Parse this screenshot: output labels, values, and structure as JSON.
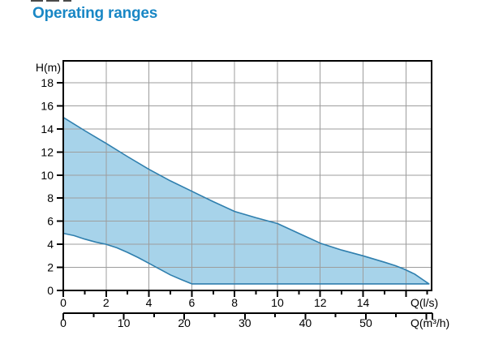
{
  "title": "Operating ranges",
  "title_color": "#1987c5",
  "chart_data": {
    "type": "area",
    "title": "Operating ranges",
    "grid": {
      "color": "#9d9d9d",
      "x_step": 2,
      "y_step": 2,
      "grid_on": true
    },
    "frame_color": "#000000",
    "y_axis": {
      "label": "H(m)",
      "range": [
        0,
        19.9
      ],
      "ticks": [
        0,
        2,
        4,
        6,
        8,
        10,
        12,
        14,
        16,
        18
      ]
    },
    "x_axis_primary": {
      "label": "Q(l/s)",
      "range": [
        0,
        17.2
      ],
      "major_ticks": [
        0,
        2,
        4,
        6,
        8,
        10,
        12,
        14,
        16
      ],
      "minor_ticks": [
        1,
        3,
        5,
        7,
        9,
        11,
        13,
        15,
        17
      ],
      "labeled_ticks": [
        0,
        2,
        4,
        6,
        8,
        10,
        12,
        14
      ]
    },
    "x_axis_secondary": {
      "label": "Q(m³/h)",
      "range": [
        0,
        61
      ],
      "major_ticks": [
        0,
        10,
        20,
        30,
        40,
        50,
        60
      ],
      "minor_ticks": [
        5,
        15,
        25,
        35,
        45,
        55
      ],
      "labeled_ticks": [
        0,
        10,
        20,
        30,
        40,
        50
      ],
      "end_tick_value": 61
    },
    "band": {
      "name": "operating-range-envelope",
      "fill": "#a7d3ea",
      "stroke": "#2f7fae",
      "upper_boundary": [
        [
          0,
          15.0
        ],
        [
          1,
          13.85
        ],
        [
          2,
          12.75
        ],
        [
          3,
          11.6
        ],
        [
          4,
          10.5
        ],
        [
          5,
          9.5
        ],
        [
          6,
          8.6
        ],
        [
          7,
          7.7
        ],
        [
          8,
          6.85
        ],
        [
          9,
          6.3
        ],
        [
          10,
          5.8
        ],
        [
          11,
          4.95
        ],
        [
          12,
          4.1
        ],
        [
          13,
          3.5
        ],
        [
          14,
          3.0
        ],
        [
          15,
          2.45
        ],
        [
          15.5,
          2.15
        ],
        [
          15.9,
          1.86
        ],
        [
          16.4,
          1.43
        ],
        [
          16.8,
          0.92
        ],
        [
          17.08,
          0.57
        ]
      ],
      "lower_boundary": [
        [
          0,
          4.95
        ],
        [
          0.5,
          4.75
        ],
        [
          1,
          4.45
        ],
        [
          1.5,
          4.2
        ],
        [
          2,
          4.0
        ],
        [
          2.5,
          3.7
        ],
        [
          3,
          3.3
        ],
        [
          3.5,
          2.85
        ],
        [
          4,
          2.35
        ],
        [
          4.5,
          1.85
        ],
        [
          5,
          1.35
        ],
        [
          5.5,
          0.95
        ],
        [
          6,
          0.57
        ],
        [
          17.08,
          0.57
        ]
      ]
    }
  }
}
